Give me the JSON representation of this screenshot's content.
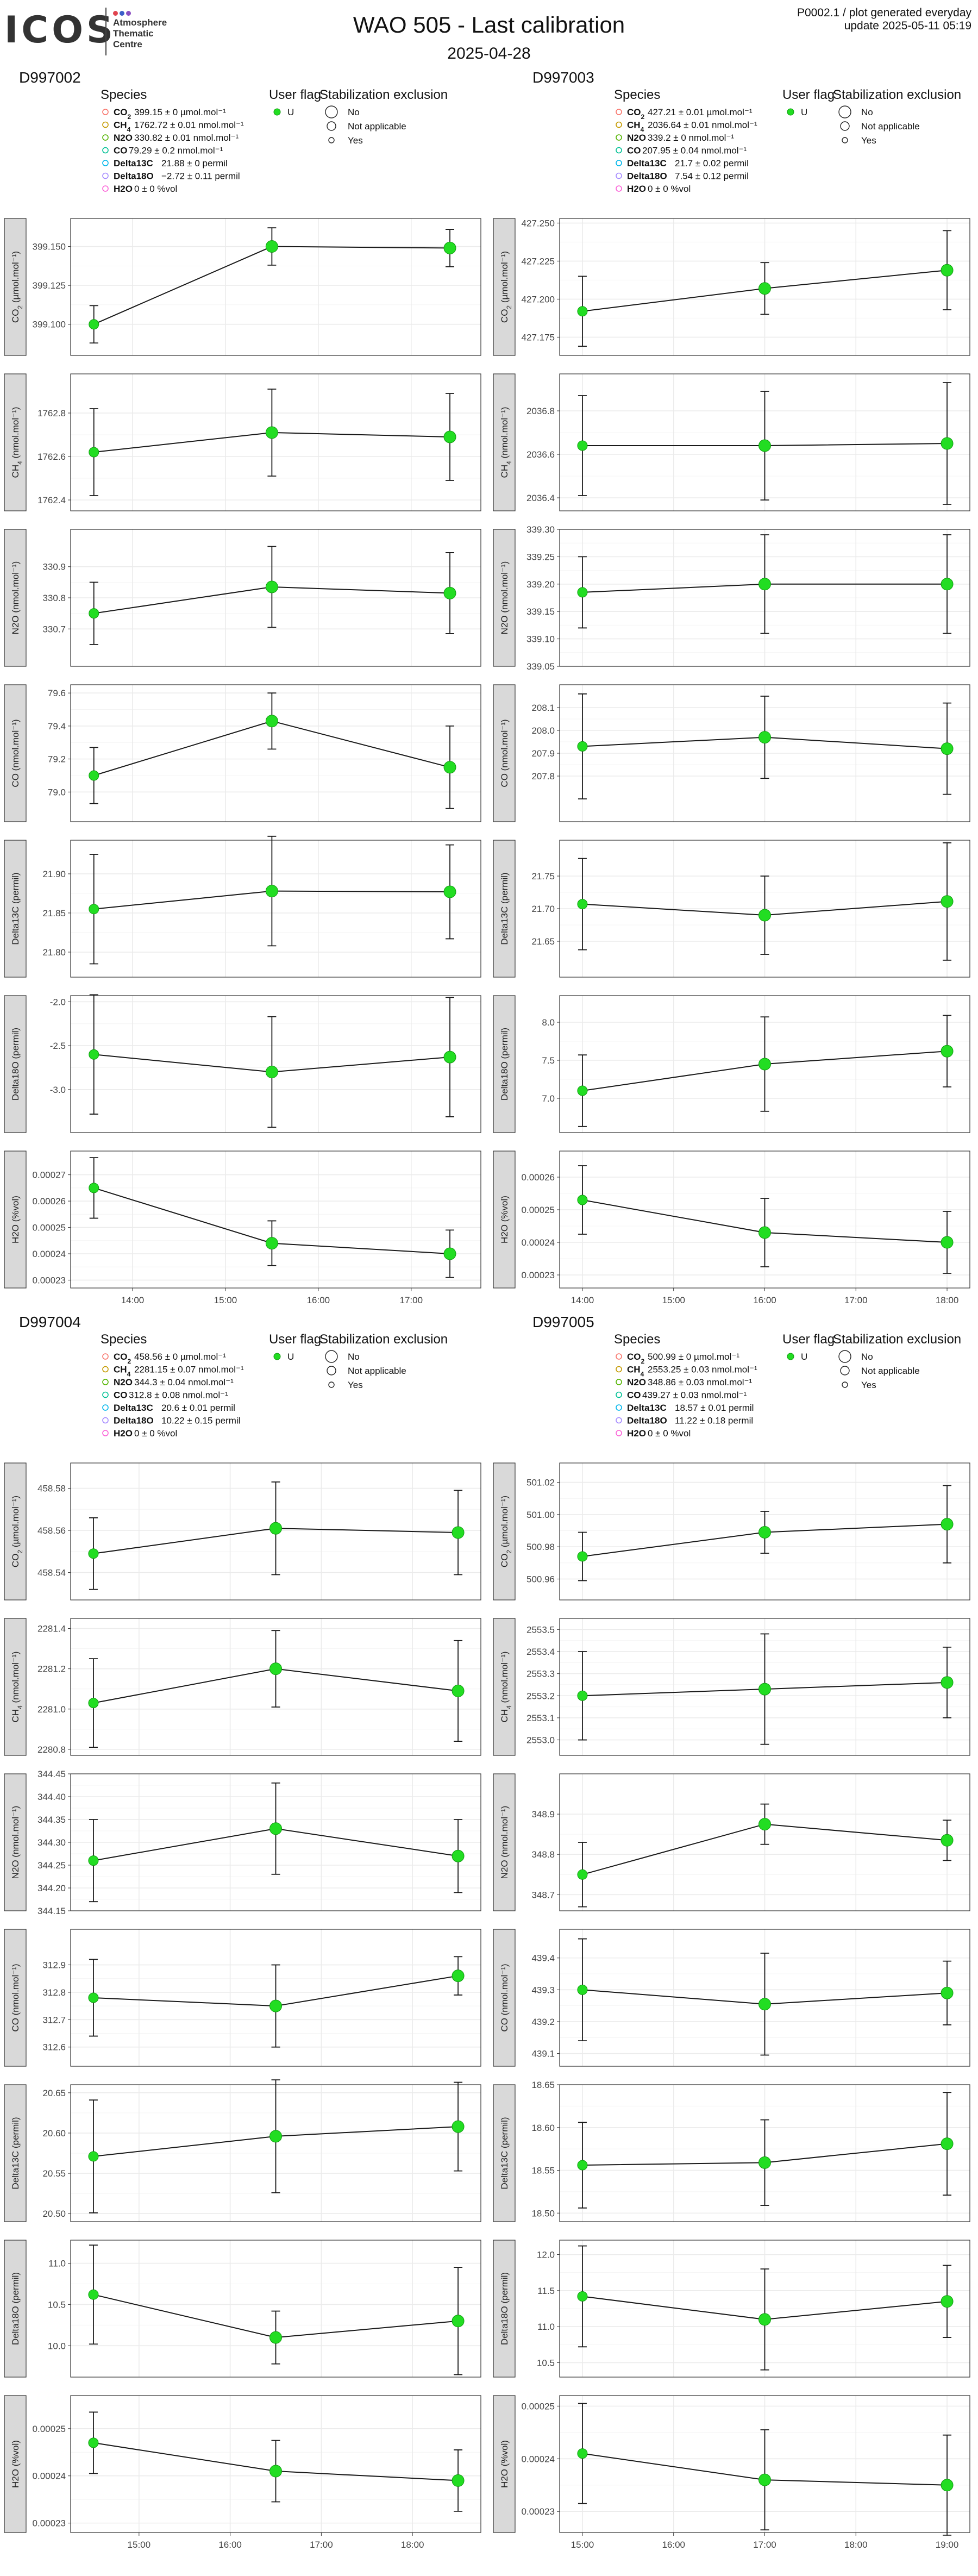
{
  "header": {
    "logo_text": "ICOS",
    "logo_subtitle": [
      "Atmosphere",
      "Thematic",
      "Centre"
    ],
    "title": "WAO 505 - Last calibration",
    "date": "2025-04-28",
    "product": "P0002.1 / plot generated everyday",
    "update": "update  2025-05-11 05:19"
  },
  "legend_titles": {
    "species": "Species",
    "user_flag": "User flag",
    "stabilization": "Stabilization exclusion"
  },
  "user_flag_value": "U",
  "stabilization_items": [
    "No",
    "Not applicable",
    "Yes"
  ],
  "colors": {
    "marker": "#22dd22",
    "marker_edge": "#119911",
    "line": "#1a1a1a",
    "strip_bg": "#d9d9d9",
    "grid": "#ebebeb",
    "species_legend": [
      "#f8766d",
      "#c49a00",
      "#53b400",
      "#00c094",
      "#00b6eb",
      "#a58aff",
      "#fb61d7"
    ]
  },
  "chart_data": [
    {
      "type": "line",
      "cylinder": "D997002",
      "species_legend": [
        {
          "name": "CO2",
          "value": "399.15 ± 0 µmol.mol⁻¹"
        },
        {
          "name": "CH4",
          "value": "1762.72 ± 0.01 nmol.mol⁻¹"
        },
        {
          "name": "N2O",
          "value": "330.82 ± 0.01 nmol.mol⁻¹"
        },
        {
          "name": "CO",
          "value": "79.29 ± 0.2 nmol.mol⁻¹"
        },
        {
          "name": "Delta13C",
          "value": "21.88 ± 0 permil"
        },
        {
          "name": "Delta18O",
          "value": "−2.72 ± 0.11 permil"
        },
        {
          "name": "H2O",
          "value": "0 ± 0 %vol"
        }
      ],
      "x": [
        "13:35",
        "15:30",
        "17:25"
      ],
      "x_range": [
        "13:20",
        "17:45"
      ],
      "x_ticks": [
        "14:00",
        "15:00",
        "16:00",
        "17:00"
      ],
      "panels": [
        {
          "ylabel": "CO2 (µmol.mol⁻¹)",
          "ylim": [
            399.08,
            399.168
          ],
          "y_ticks": [
            "399.100",
            "399.125",
            "399.150"
          ],
          "values": [
            399.1,
            399.15,
            399.149
          ],
          "errors": [
            0.012,
            0.012,
            0.012
          ]
        },
        {
          "ylabel": "CH4 (nmol.mol⁻¹)",
          "ylim": [
            1762.35,
            1762.98
          ],
          "y_ticks": [
            "1762.4",
            "1762.6",
            "1762.8"
          ],
          "values": [
            1762.62,
            1762.71,
            1762.69
          ],
          "errors": [
            0.2,
            0.2,
            0.2
          ]
        },
        {
          "ylabel": "N2O (nmol.mol⁻¹)",
          "ylim": [
            330.58,
            331.02
          ],
          "y_ticks": [
            "330.7",
            "330.8",
            "330.9"
          ],
          "values": [
            330.75,
            330.835,
            330.815
          ],
          "errors": [
            0.1,
            0.13,
            0.13
          ]
        },
        {
          "ylabel": "CO (nmol.mol⁻¹)",
          "ylim": [
            78.82,
            79.65
          ],
          "y_ticks": [
            "79.0",
            "79.2",
            "79.4",
            "79.6"
          ],
          "values": [
            79.1,
            79.43,
            79.15
          ],
          "errors": [
            0.17,
            0.17,
            0.25
          ]
        },
        {
          "ylabel": "Delta13C (permil)",
          "ylim": [
            21.768,
            21.943
          ],
          "y_ticks": [
            "21.80",
            "21.85",
            "21.90"
          ],
          "values": [
            21.855,
            21.878,
            21.877
          ],
          "errors": [
            0.07,
            0.07,
            0.06
          ]
        },
        {
          "ylabel": "Delta18O (permil)",
          "ylim": [
            -3.49,
            -1.93
          ],
          "y_ticks": [
            "-3.0",
            "-2.5",
            "-2.0"
          ],
          "values": [
            -2.6,
            -2.8,
            -2.63
          ],
          "errors": [
            0.68,
            0.63,
            0.68
          ]
        },
        {
          "ylabel": "H2O (%vol)",
          "ylim": [
            0.000227,
            0.000279
          ],
          "y_ticks": [
            "0.00023",
            "0.00024",
            "0.00025",
            "0.00026",
            "0.00027"
          ],
          "values": [
            0.000265,
            0.000244,
            0.00024
          ],
          "errors": [
            1.15e-05,
            8.5e-06,
            9e-06
          ]
        }
      ]
    },
    {
      "type": "line",
      "cylinder": "D997003",
      "species_legend": [
        {
          "name": "CO2",
          "value": "427.21 ± 0.01 µmol.mol⁻¹"
        },
        {
          "name": "CH4",
          "value": "2036.64 ± 0.01 nmol.mol⁻¹"
        },
        {
          "name": "N2O",
          "value": "339.2 ± 0 nmol.mol⁻¹"
        },
        {
          "name": "CO",
          "value": "207.95 ± 0.04 nmol.mol⁻¹"
        },
        {
          "name": "Delta13C",
          "value": "21.7 ± 0.02 permil"
        },
        {
          "name": "Delta18O",
          "value": "7.54 ± 0.12 permil"
        },
        {
          "name": "H2O",
          "value": "0 ± 0 %vol"
        }
      ],
      "x": [
        "14:00",
        "16:00",
        "18:00"
      ],
      "x_range": [
        "13:45",
        "18:15"
      ],
      "x_ticks": [
        "14:00",
        "15:00",
        "16:00",
        "17:00",
        "18:00"
      ],
      "panels": [
        {
          "ylabel": "CO2 (µmol.mol⁻¹)",
          "ylim": [
            427.163,
            427.253
          ],
          "y_ticks": [
            "427.175",
            "427.200",
            "427.225",
            "427.250"
          ],
          "values": [
            427.192,
            427.207,
            427.219
          ],
          "errors": [
            0.023,
            0.017,
            0.026
          ]
        },
        {
          "ylabel": "CH4 (nmol.mol⁻¹)",
          "ylim": [
            2036.34,
            2036.97
          ],
          "y_ticks": [
            "2036.4",
            "2036.6",
            "2036.8"
          ],
          "values": [
            2036.64,
            2036.64,
            2036.65
          ],
          "errors": [
            0.23,
            0.25,
            0.28
          ]
        },
        {
          "ylabel": "N2O (nmol.mol⁻¹)",
          "ylim": [
            339.05,
            339.3
          ],
          "y_ticks": [
            "339.05",
            "339.10",
            "339.15",
            "339.20",
            "339.25",
            "339.30"
          ],
          "values": [
            339.185,
            339.2,
            339.2
          ],
          "errors": [
            0.065,
            0.09,
            0.09
          ]
        },
        {
          "ylabel": "CO (nmol.mol⁻¹)",
          "ylim": [
            207.6,
            208.2
          ],
          "y_ticks": [
            "207.8",
            "207.9",
            "208.0",
            "208.1"
          ],
          "values": [
            207.93,
            207.97,
            207.92
          ],
          "errors": [
            0.23,
            0.18,
            0.2
          ]
        },
        {
          "ylabel": "Delta13C (permil)",
          "ylim": [
            21.595,
            21.805
          ],
          "y_ticks": [
            "21.65",
            "21.70",
            "21.75"
          ],
          "values": [
            21.707,
            21.69,
            21.711
          ],
          "errors": [
            0.07,
            0.06,
            0.09
          ]
        },
        {
          "ylabel": "Delta18O (permil)",
          "ylim": [
            6.55,
            8.35
          ],
          "y_ticks": [
            "7.0",
            "7.5",
            "8.0"
          ],
          "values": [
            7.1,
            7.45,
            7.62
          ],
          "errors": [
            0.47,
            0.62,
            0.47
          ]
        },
        {
          "ylabel": "H2O (%vol)",
          "ylim": [
            0.000226,
            0.000268
          ],
          "y_ticks": [
            "0.00023",
            "0.00024",
            "0.00025",
            "0.00026"
          ],
          "values": [
            0.000253,
            0.000243,
            0.00024
          ],
          "errors": [
            1.05e-05,
            1.05e-05,
            9.5e-06
          ]
        }
      ]
    },
    {
      "type": "line",
      "cylinder": "D997004",
      "species_legend": [
        {
          "name": "CO2",
          "value": "458.56 ± 0 µmol.mol⁻¹"
        },
        {
          "name": "CH4",
          "value": "2281.15 ± 0.07 nmol.mol⁻¹"
        },
        {
          "name": "N2O",
          "value": "344.3 ± 0.04 nmol.mol⁻¹"
        },
        {
          "name": "CO",
          "value": "312.8 ± 0.08 nmol.mol⁻¹"
        },
        {
          "name": "Delta13C",
          "value": "20.6 ± 0.01 permil"
        },
        {
          "name": "Delta18O",
          "value": "10.22 ± 0.15 permil"
        },
        {
          "name": "H2O",
          "value": "0 ± 0 %vol"
        }
      ],
      "x": [
        "14:30",
        "16:30",
        "18:30"
      ],
      "x_range": [
        "14:15",
        "18:45"
      ],
      "x_ticks": [
        "15:00",
        "16:00",
        "17:00",
        "18:00"
      ],
      "panels": [
        {
          "ylabel": "CO2 (µmol.mol⁻¹)",
          "ylim": [
            458.527,
            458.592
          ],
          "y_ticks": [
            "458.54",
            "458.56",
            "458.58"
          ],
          "values": [
            458.549,
            458.561,
            458.559
          ],
          "errors": [
            0.017,
            0.022,
            0.02
          ]
        },
        {
          "ylabel": "CH4 (nmol.mol⁻¹)",
          "ylim": [
            2280.77,
            2281.45
          ],
          "y_ticks": [
            "2280.8",
            "2281.0",
            "2281.2",
            "2281.4"
          ],
          "values": [
            2281.03,
            2281.2,
            2281.09
          ],
          "errors": [
            0.22,
            0.19,
            0.25
          ]
        },
        {
          "ylabel": "N2O (nmol.mol⁻¹)",
          "ylim": [
            344.15,
            344.45
          ],
          "y_ticks": [
            "344.15",
            "344.20",
            "344.25",
            "344.30",
            "344.35",
            "344.40",
            "344.45"
          ],
          "values": [
            344.26,
            344.33,
            344.27
          ],
          "errors": [
            0.09,
            0.1,
            0.08
          ]
        },
        {
          "ylabel": "CO (nmol.mol⁻¹)",
          "ylim": [
            312.53,
            313.03
          ],
          "y_ticks": [
            "312.6",
            "312.7",
            "312.8",
            "312.9"
          ],
          "values": [
            312.78,
            312.75,
            312.86
          ],
          "errors": [
            0.14,
            0.15,
            0.07
          ]
        },
        {
          "ylabel": "Delta13C (permil)",
          "ylim": [
            20.49,
            20.66
          ],
          "y_ticks": [
            "20.50",
            "20.55",
            "20.60",
            "20.65"
          ],
          "values": [
            20.571,
            20.596,
            20.608
          ],
          "errors": [
            0.07,
            0.07,
            0.055
          ]
        },
        {
          "ylabel": "Delta18O (permil)",
          "ylim": [
            9.62,
            11.28
          ],
          "y_ticks": [
            "10.0",
            "10.5",
            "11.0"
          ],
          "values": [
            10.62,
            10.1,
            10.3
          ],
          "errors": [
            0.6,
            0.32,
            0.65
          ]
        },
        {
          "ylabel": "H2O (%vol)",
          "ylim": [
            0.000228,
            0.000257
          ],
          "y_ticks": [
            "0.00023",
            "0.00024",
            "0.00025"
          ],
          "values": [
            0.000247,
            0.000241,
            0.000239
          ],
          "errors": [
            6.5e-06,
            6.5e-06,
            6.5e-06
          ]
        }
      ]
    },
    {
      "type": "line",
      "cylinder": "D997005",
      "species_legend": [
        {
          "name": "CO2",
          "value": "500.99 ± 0 µmol.mol⁻¹"
        },
        {
          "name": "CH4",
          "value": "2553.25 ± 0.03 nmol.mol⁻¹"
        },
        {
          "name": "N2O",
          "value": "348.86 ± 0.03 nmol.mol⁻¹"
        },
        {
          "name": "CO",
          "value": "439.27 ± 0.03 nmol.mol⁻¹"
        },
        {
          "name": "Delta13C",
          "value": "18.57 ± 0.01 permil"
        },
        {
          "name": "Delta18O",
          "value": "11.22 ± 0.18 permil"
        },
        {
          "name": "H2O",
          "value": "0 ± 0 %vol"
        }
      ],
      "x": [
        "15:00",
        "17:00",
        "19:00"
      ],
      "x_range": [
        "14:45",
        "19:15"
      ],
      "x_ticks": [
        "15:00",
        "16:00",
        "17:00",
        "18:00",
        "19:00"
      ],
      "panels": [
        {
          "ylabel": "CO2 (µmol.mol⁻¹)",
          "ylim": [
            500.947,
            501.032
          ],
          "y_ticks": [
            "500.96",
            "500.98",
            "501.00",
            "501.02"
          ],
          "values": [
            500.974,
            500.989,
            500.994
          ],
          "errors": [
            0.015,
            0.013,
            0.024
          ]
        },
        {
          "ylabel": "CH4 (nmol.mol⁻¹)",
          "ylim": [
            2552.93,
            2553.55
          ],
          "y_ticks": [
            "2553.0",
            "2553.1",
            "2553.2",
            "2553.3",
            "2553.4",
            "2553.5"
          ],
          "values": [
            2553.2,
            2553.23,
            2553.26
          ],
          "errors": [
            0.2,
            0.25,
            0.16
          ]
        },
        {
          "ylabel": "N2O (nmol.mol⁻¹)",
          "ylim": [
            348.66,
            349.0
          ],
          "y_ticks": [
            "348.7",
            "348.8",
            "348.9"
          ],
          "values": [
            348.75,
            348.875,
            348.835
          ],
          "errors": [
            0.08,
            0.05,
            0.05
          ]
        },
        {
          "ylabel": "CO (nmol.mol⁻¹)",
          "ylim": [
            439.06,
            439.49
          ],
          "y_ticks": [
            "439.1",
            "439.2",
            "439.3",
            "439.4"
          ],
          "values": [
            439.3,
            439.255,
            439.29
          ],
          "errors": [
            0.16,
            0.16,
            0.1
          ]
        },
        {
          "ylabel": "Delta13C (permil)",
          "ylim": [
            18.49,
            18.65
          ],
          "y_ticks": [
            "18.50",
            "18.55",
            "18.60",
            "18.65"
          ],
          "values": [
            18.556,
            18.559,
            18.581
          ],
          "errors": [
            0.05,
            0.05,
            0.06
          ]
        },
        {
          "ylabel": "Delta18O (permil)",
          "ylim": [
            10.3,
            12.2
          ],
          "y_ticks": [
            "10.5",
            "11.0",
            "11.5",
            "12.0"
          ],
          "values": [
            11.42,
            11.1,
            11.35
          ],
          "errors": [
            0.7,
            0.7,
            0.5
          ]
        },
        {
          "ylabel": "H2O (%vol)",
          "ylim": [
            0.000226,
            0.000252
          ],
          "y_ticks": [
            "0.00023",
            "0.00024",
            "0.00025"
          ],
          "values": [
            0.000241,
            0.000236,
            0.000235
          ],
          "errors": [
            9.5e-06,
            9.5e-06,
            9.5e-06
          ]
        }
      ]
    }
  ]
}
